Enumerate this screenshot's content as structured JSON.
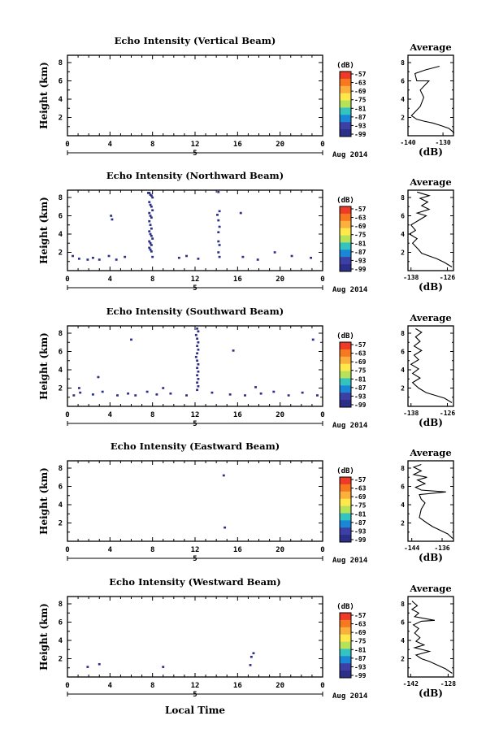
{
  "figure": {
    "xlabel": "Local Time",
    "date_label": "Aug 2014",
    "x_ticks": [
      "0",
      "4",
      "8",
      "12",
      "16",
      "20",
      "0"
    ],
    "day_label": "5",
    "y_label": "Height (km)",
    "y_ticks": [
      "2",
      "4",
      "6",
      "8"
    ],
    "unit": "(dB)",
    "colorbar_ticks": [
      "-57",
      "-63",
      "-69",
      "-75",
      "-81",
      "-87",
      "-93",
      "-99"
    ],
    "colors": [
      "#ef3a28",
      "#f7781f",
      "#fbb03b",
      "#ffe94a",
      "#b6e25a",
      "#33c3c0",
      "#1a86d6",
      "#3c40a4",
      "#2b2f87"
    ],
    "avg_title": "Average",
    "avg_xlabel": "(dB)"
  },
  "chart_data": [
    {
      "type": "heatmap",
      "title": "Echo Intensity (Vertical Beam)",
      "x": [],
      "y": [],
      "avg_xticks": [
        "-140",
        "-130"
      ],
      "avg_xlim": [
        -140,
        -127
      ],
      "average": [
        [
          -126.8,
          0.3
        ],
        [
          -128.3,
          0.8
        ],
        [
          -130.5,
          1.1
        ],
        [
          -133,
          1.4
        ],
        [
          -135.5,
          1.6
        ],
        [
          -137.5,
          1.8
        ],
        [
          -139,
          2.2
        ],
        [
          -136.5,
          3.2
        ],
        [
          -135.5,
          4.2
        ],
        [
          -136.5,
          5.0
        ],
        [
          -134,
          6.0
        ],
        [
          -137.5,
          6.0
        ],
        [
          -138,
          6.8
        ],
        [
          -135,
          7.2
        ],
        [
          -131,
          7.6
        ]
      ]
    },
    {
      "type": "heatmap",
      "title": "Echo Intensity (Northward Beam)",
      "x": [
        7.6,
        7.7,
        7.8,
        7.9,
        8.0,
        7.7,
        7.8,
        7.9,
        8.0,
        7.7,
        7.8,
        7.9,
        7.7,
        7.8,
        7.9,
        7.7,
        7.8,
        7.9,
        8.0,
        7.7,
        7.8,
        7.9,
        7.7,
        7.8,
        7.9,
        8.0,
        14.2,
        14.3,
        14.1,
        14.2,
        14.3,
        14.2,
        14.2,
        14.3,
        14.2,
        14.3,
        4.1,
        4.2,
        0.5,
        1.1,
        1.9,
        2.4,
        3.0,
        3.9,
        4.6,
        5.4,
        10.5,
        11.2,
        12.3,
        16.5,
        17.9,
        19.5,
        21.1,
        22.9,
        16.3
      ],
      "y": [
        8.5,
        8.5,
        8.3,
        8.2,
        8.0,
        7.5,
        7.2,
        7.0,
        6.6,
        6.3,
        6.0,
        5.8,
        5.4,
        5.0,
        4.6,
        4.3,
        4.0,
        3.8,
        3.5,
        3.2,
        3.0,
        2.8,
        2.5,
        2.3,
        2.1,
        1.5,
        8.6,
        6.5,
        6.1,
        5.5,
        4.8,
        4.2,
        3.2,
        2.8,
        2.0,
        1.5,
        6.0,
        5.6,
        1.6,
        1.3,
        1.2,
        1.4,
        1.2,
        1.6,
        1.2,
        1.5,
        1.4,
        1.6,
        1.3,
        1.5,
        1.2,
        2.0,
        1.6,
        1.4,
        6.3
      ],
      "values": [
        -99,
        -99,
        -99,
        -99,
        -99,
        -99,
        -99,
        -99,
        -99,
        -99,
        -99,
        -99,
        -99,
        -99,
        -99,
        -99,
        -99,
        -99,
        -99,
        -99,
        -99,
        -99,
        -99,
        -99,
        -99,
        -99,
        -99,
        -99,
        -99,
        -99,
        -99,
        -99,
        -99,
        -99,
        -99,
        -99,
        -99,
        -99,
        -99,
        -99,
        -99,
        -99,
        -99,
        -99,
        -99,
        -99,
        -99,
        -99,
        -99,
        -99,
        -99,
        -99,
        -99,
        -99,
        -99
      ],
      "avg_xticks": [
        "-138",
        "-126"
      ],
      "avg_xlim": [
        -139,
        -124
      ],
      "average": [
        [
          -124.5,
          0.4
        ],
        [
          -127,
          0.9
        ],
        [
          -129.5,
          1.3
        ],
        [
          -132,
          1.6
        ],
        [
          -134.5,
          1.9
        ],
        [
          -135.5,
          2.3
        ],
        [
          -137.5,
          3.0
        ],
        [
          -136,
          3.5
        ],
        [
          -138.5,
          4.0
        ],
        [
          -136.5,
          4.4
        ],
        [
          -138,
          5.0
        ],
        [
          -135.5,
          5.5
        ],
        [
          -133,
          6.0
        ],
        [
          -136,
          6.3
        ],
        [
          -132,
          6.7
        ],
        [
          -134.5,
          7.1
        ],
        [
          -132.5,
          7.5
        ],
        [
          -135,
          7.9
        ],
        [
          -132,
          8.2
        ],
        [
          -136,
          8.6
        ]
      ]
    },
    {
      "type": "heatmap",
      "title": "Echo Intensity (Southward Beam)",
      "x": [
        12.2,
        12.3,
        12.1,
        12.2,
        12.3,
        12.2,
        12.3,
        12.2,
        12.1,
        12.2,
        12.3,
        12.2,
        12.3,
        12.2,
        12.3,
        12.2,
        12.3,
        12.2,
        0.6,
        1.2,
        2.4,
        3.3,
        4.7,
        5.7,
        6.4,
        7.5,
        8.4,
        9.7,
        11.2,
        13.6,
        15.3,
        16.7,
        18.2,
        19.4,
        20.8,
        22.1,
        23.5,
        6.0,
        2.9,
        1.1,
        9.0,
        23.1,
        15.6,
        17.7
      ],
      "y": [
        8.5,
        8.2,
        7.8,
        7.4,
        7.0,
        6.6,
        6.2,
        5.8,
        5.4,
        5.0,
        4.6,
        4.2,
        3.8,
        3.4,
        3.0,
        2.6,
        2.2,
        1.8,
        1.2,
        1.5,
        1.3,
        1.6,
        1.2,
        1.4,
        1.2,
        1.6,
        1.3,
        1.4,
        1.2,
        1.5,
        1.3,
        1.2,
        1.4,
        1.6,
        1.2,
        1.5,
        1.2,
        7.3,
        3.2,
        2.0,
        2.0,
        7.3,
        6.1,
        2.1
      ],
      "values": [
        -99,
        -99,
        -99,
        -99,
        -99,
        -99,
        -99,
        -99,
        -99,
        -99,
        -99,
        -99,
        -99,
        -99,
        -99,
        -99,
        -99,
        -99,
        -99,
        -99,
        -99,
        -99,
        -99,
        -99,
        -99,
        -99,
        -99,
        -99,
        -99,
        -99,
        -99,
        -99,
        -99,
        -99,
        -99,
        -99,
        -99,
        -99,
        -99,
        -99,
        -99,
        -99,
        -99,
        -99
      ],
      "avg_xticks": [
        "-138",
        "-126"
      ],
      "avg_xlim": [
        -139,
        -124
      ],
      "average": [
        [
          -124.5,
          0.4
        ],
        [
          -127,
          0.9
        ],
        [
          -130,
          1.2
        ],
        [
          -133,
          1.5
        ],
        [
          -135.5,
          2.0
        ],
        [
          -137.5,
          2.6
        ],
        [
          -135,
          3.1
        ],
        [
          -137.5,
          3.6
        ],
        [
          -135.5,
          4.1
        ],
        [
          -138,
          4.6
        ],
        [
          -135.5,
          5.1
        ],
        [
          -137,
          5.6
        ],
        [
          -134.5,
          6.1
        ],
        [
          -137,
          6.6
        ],
        [
          -135,
          7.1
        ],
        [
          -136.5,
          7.6
        ],
        [
          -134.5,
          8.1
        ],
        [
          -136.5,
          8.5
        ]
      ]
    },
    {
      "type": "heatmap",
      "title": "Echo Intensity (Eastward Beam)",
      "x": [
        14.7,
        14.8
      ],
      "y": [
        7.2,
        1.5
      ],
      "values": [
        -99,
        -99
      ],
      "avg_xticks": [
        "-144",
        "-136"
      ],
      "avg_xlim": [
        -145,
        -133
      ],
      "average": [
        [
          -133.2,
          0.3
        ],
        [
          -134.5,
          0.8
        ],
        [
          -136.5,
          1.2
        ],
        [
          -138.5,
          1.6
        ],
        [
          -140,
          2.0
        ],
        [
          -142,
          2.6
        ],
        [
          -141.5,
          3.5
        ],
        [
          -140.5,
          4.2
        ],
        [
          -141.5,
          4.6
        ],
        [
          -142,
          5.1
        ],
        [
          -135,
          5.4
        ],
        [
          -141.5,
          5.6
        ],
        [
          -143,
          5.9
        ],
        [
          -140.5,
          6.3
        ],
        [
          -142.5,
          6.7
        ],
        [
          -140,
          7.0
        ],
        [
          -143.5,
          7.3
        ],
        [
          -141.5,
          7.7
        ],
        [
          -143.5,
          8.1
        ],
        [
          -141.5,
          8.4
        ]
      ]
    },
    {
      "type": "heatmap",
      "title": "Echo Intensity (Westward Beam)",
      "x": [
        1.9,
        3.0,
        9.0,
        17.3,
        17.5,
        17.2
      ],
      "y": [
        1.1,
        1.4,
        1.1,
        2.2,
        2.6,
        1.3
      ],
      "values": [
        -99,
        -99,
        -99,
        -99,
        -99,
        -99
      ],
      "avg_xticks": [
        "-142",
        "-128"
      ],
      "avg_xlim": [
        -143,
        -126
      ],
      "average": [
        [
          -126.5,
          0.4
        ],
        [
          -129,
          0.9
        ],
        [
          -132,
          1.3
        ],
        [
          -135,
          1.7
        ],
        [
          -138,
          2.0
        ],
        [
          -140,
          2.4
        ],
        [
          -135,
          2.8
        ],
        [
          -140.5,
          3.2
        ],
        [
          -137,
          3.5
        ],
        [
          -140,
          3.9
        ],
        [
          -138.5,
          4.3
        ],
        [
          -140.5,
          4.8
        ],
        [
          -139,
          5.3
        ],
        [
          -141,
          5.7
        ],
        [
          -138,
          6.1
        ],
        [
          -133,
          6.2
        ],
        [
          -140.5,
          6.6
        ],
        [
          -139,
          7.0
        ],
        [
          -141.5,
          7.4
        ],
        [
          -139.5,
          7.8
        ],
        [
          -141.5,
          8.3
        ]
      ]
    }
  ]
}
